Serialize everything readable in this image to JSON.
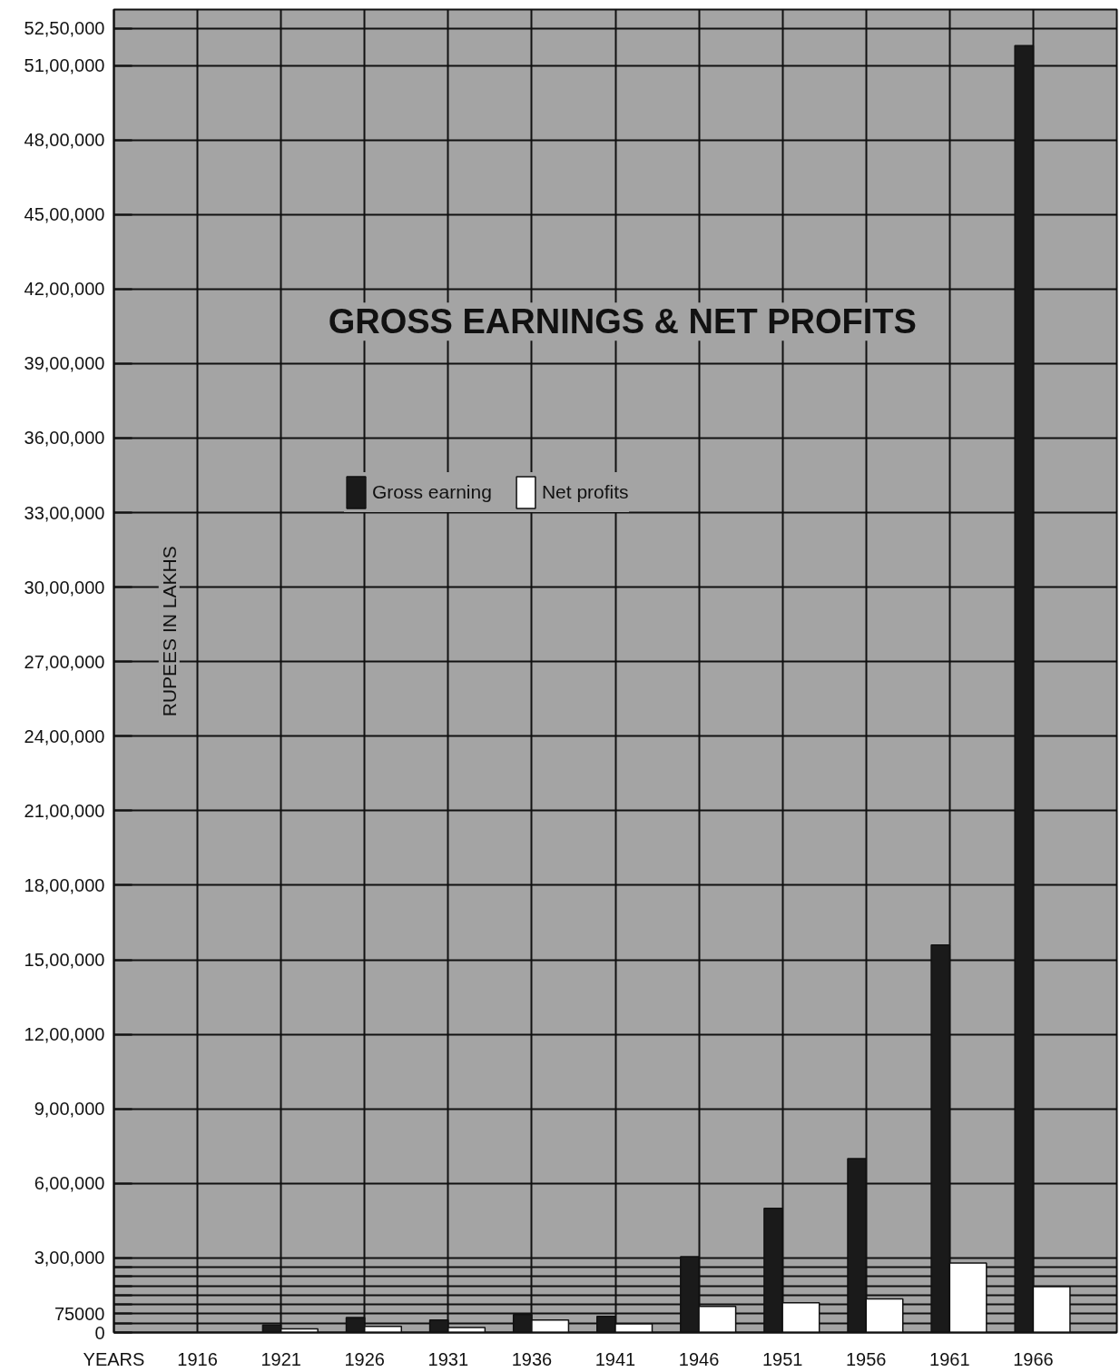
{
  "chart_data": {
    "type": "bar",
    "title": "GROSS EARNINGS & NET PROFITS",
    "xlabel": "YEARS",
    "ylabel": "RUPEES IN LAKHS",
    "categories": [
      "1916",
      "1921",
      "1926",
      "1931",
      "1936",
      "1941",
      "1946",
      "1951",
      "1956",
      "1961",
      "1966"
    ],
    "series": [
      {
        "name": "Gross earning",
        "color": "#1a1a1a",
        "values": [
          null,
          30000,
          60000,
          50000,
          72000,
          65000,
          305000,
          500000,
          700000,
          1560000,
          5180000
        ]
      },
      {
        "name": "Net profits",
        "color": "#ffffff",
        "values": [
          null,
          15000,
          25000,
          20000,
          50000,
          35000,
          105000,
          120000,
          135000,
          280000,
          185000
        ]
      }
    ],
    "ylim": [
      0,
      5325000
    ],
    "yticks": [
      0,
      {
        "value": 37500,
        "label": null
      },
      75000,
      {
        "value": 112500,
        "label": null
      },
      {
        "value": 150000,
        "label": null
      },
      {
        "value": 187500,
        "label": null
      },
      {
        "value": 225000,
        "label": null
      },
      {
        "value": 262500,
        "label": null
      },
      {
        "value": 300000,
        "label": "3,00,000"
      },
      {
        "value": 600000,
        "label": "6,00,000"
      },
      {
        "value": 900000,
        "label": "9,00,000"
      },
      {
        "value": 1200000,
        "label": "12,00,000"
      },
      {
        "value": 1500000,
        "label": "15,00,000"
      },
      {
        "value": 1800000,
        "label": "18,00,000"
      },
      {
        "value": 2100000,
        "label": "21,00,000"
      },
      {
        "value": 2400000,
        "label": "24,00,000"
      },
      {
        "value": 2700000,
        "label": "27,00,000"
      },
      {
        "value": 3000000,
        "label": "30,00,000"
      },
      {
        "value": 3300000,
        "label": "33,00,000"
      },
      {
        "value": 3600000,
        "label": "36,00,000"
      },
      {
        "value": 3900000,
        "label": "39,00,000"
      },
      {
        "value": 4200000,
        "label": "42,00,000"
      },
      {
        "value": 4500000,
        "label": "45,00,000"
      },
      {
        "value": 4800000,
        "label": "48,00,000"
      },
      {
        "value": 5100000,
        "label": "51,00,000"
      },
      {
        "value": 5250000,
        "label": "52,50,000"
      }
    ],
    "grid": true,
    "legend": "top"
  }
}
